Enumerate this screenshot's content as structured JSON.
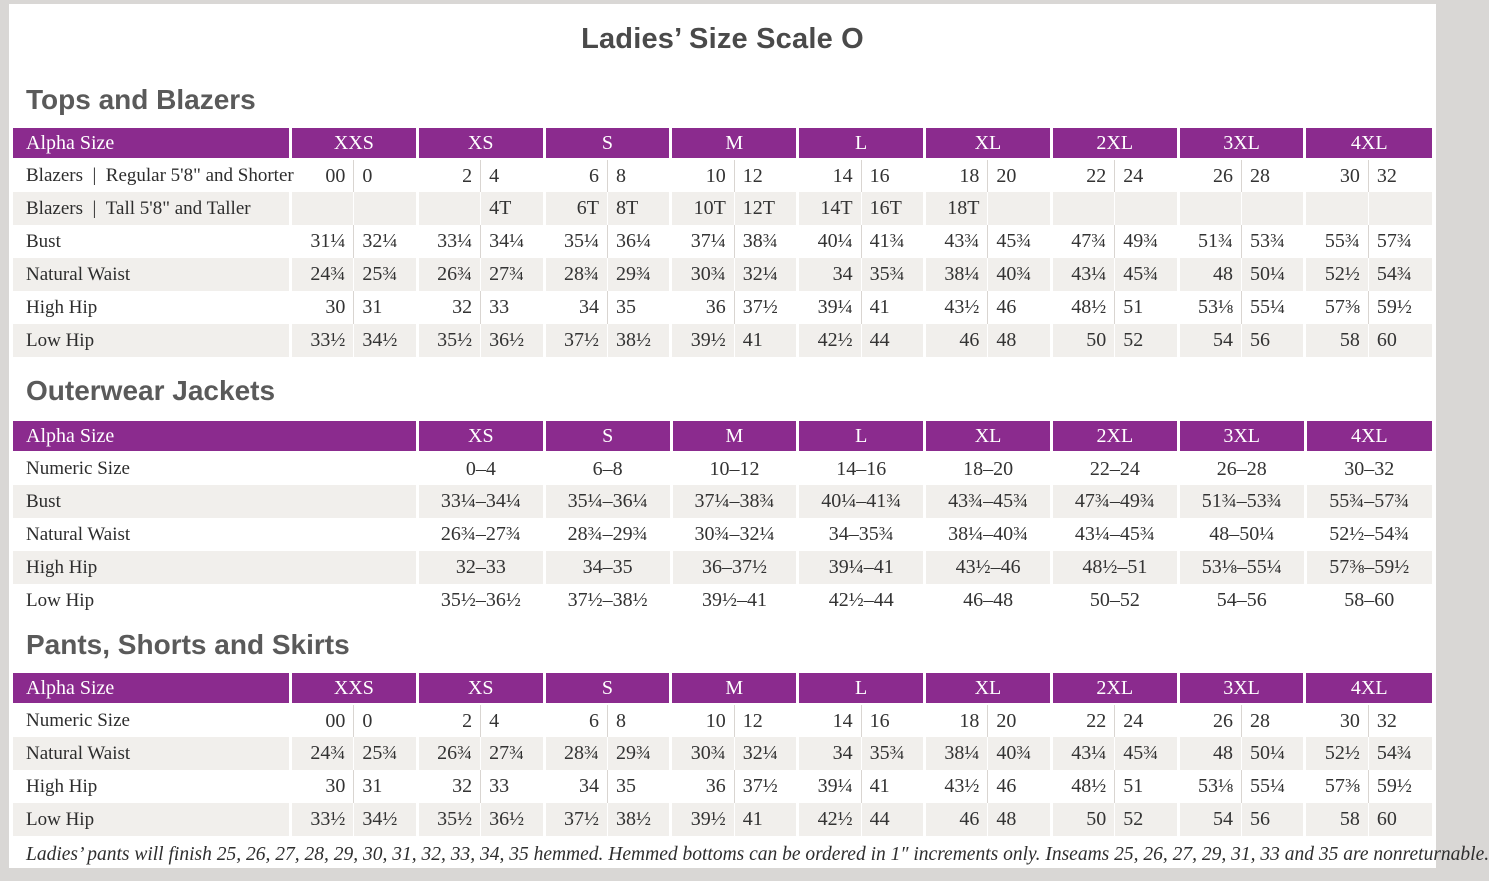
{
  "page": {
    "title": "Ladies’ Size Scale O",
    "footnote": "Ladies’ pants will finish 25, 26, 27, 28, 29, 30, 31, 32, 33, 34, 35 hemmed. Hemmed bottoms can be ordered in 1″ increments only. Inseams 25, 26, 27, 29, 31, 33 and 35 are nonreturnable.",
    "accent_color": "#8b2b8e",
    "stripe_color": "#f1efec"
  },
  "tables": [
    {
      "id": "tops-and-blazers",
      "heading": "Tops and Blazers",
      "header_label": "Alpha Size",
      "split": true,
      "sizes": [
        "XXS",
        "XS",
        "S",
        "M",
        "L",
        "XL",
        "2XL",
        "3XL",
        "4XL"
      ],
      "rows": [
        {
          "label": "Blazers | Regular 5'8\" and Shorter",
          "values": [
            [
              "00",
              "0"
            ],
            [
              "2",
              "4"
            ],
            [
              "6",
              "8"
            ],
            [
              "10",
              "12"
            ],
            [
              "14",
              "16"
            ],
            [
              "18",
              "20"
            ],
            [
              "22",
              "24"
            ],
            [
              "26",
              "28"
            ],
            [
              "30",
              "32"
            ]
          ]
        },
        {
          "label": "Blazers | Tall 5'8\" and Taller",
          "values": [
            [
              "",
              ""
            ],
            [
              "",
              "4T"
            ],
            [
              "6T",
              "8T"
            ],
            [
              "10T",
              "12T"
            ],
            [
              "14T",
              "16T"
            ],
            [
              "18T",
              ""
            ],
            [
              "",
              ""
            ],
            [
              "",
              ""
            ],
            [
              "",
              ""
            ]
          ]
        },
        {
          "label": "Bust",
          "values": [
            [
              "31¼",
              "32¼"
            ],
            [
              "33¼",
              "34¼"
            ],
            [
              "35¼",
              "36¼"
            ],
            [
              "37¼",
              "38¾"
            ],
            [
              "40¼",
              "41¾"
            ],
            [
              "43¾",
              "45¾"
            ],
            [
              "47¾",
              "49¾"
            ],
            [
              "51¾",
              "53¾"
            ],
            [
              "55¾",
              "57¾"
            ]
          ]
        },
        {
          "label": "Natural Waist",
          "values": [
            [
              "24¾",
              "25¾"
            ],
            [
              "26¾",
              "27¾"
            ],
            [
              "28¾",
              "29¾"
            ],
            [
              "30¾",
              "32¼"
            ],
            [
              "34",
              "35¾"
            ],
            [
              "38¼",
              "40¾"
            ],
            [
              "43¼",
              "45¾"
            ],
            [
              "48",
              "50¼"
            ],
            [
              "52½",
              "54¾"
            ]
          ]
        },
        {
          "label": "High Hip",
          "values": [
            [
              "30",
              "31"
            ],
            [
              "32",
              "33"
            ],
            [
              "34",
              "35"
            ],
            [
              "36",
              "37½"
            ],
            [
              "39¼",
              "41"
            ],
            [
              "43½",
              "46"
            ],
            [
              "48½",
              "51"
            ],
            [
              "53⅛",
              "55¼"
            ],
            [
              "57⅜",
              "59½"
            ]
          ]
        },
        {
          "label": "Low Hip",
          "values": [
            [
              "33½",
              "34½"
            ],
            [
              "35½",
              "36½"
            ],
            [
              "37½",
              "38½"
            ],
            [
              "39½",
              "41"
            ],
            [
              "42½",
              "44"
            ],
            [
              "46",
              "48"
            ],
            [
              "50",
              "52"
            ],
            [
              "54",
              "56"
            ],
            [
              "58",
              "60"
            ]
          ]
        }
      ]
    },
    {
      "id": "outerwear-jackets",
      "heading": "Outerwear Jackets",
      "header_label": "Alpha Size",
      "split": false,
      "sizes": [
        "XS",
        "S",
        "M",
        "L",
        "XL",
        "2XL",
        "3XL",
        "4XL"
      ],
      "rows": [
        {
          "label": "Numeric Size",
          "values": [
            "0–4",
            "6–8",
            "10–12",
            "14–16",
            "18–20",
            "22–24",
            "26–28",
            "30–32"
          ]
        },
        {
          "label": "Bust",
          "values": [
            "33¼–34¼",
            "35¼–36¼",
            "37¼–38¾",
            "40¼–41¾",
            "43¾–45¾",
            "47¾–49¾",
            "51¾–53¾",
            "55¾–57¾"
          ]
        },
        {
          "label": "Natural Waist",
          "values": [
            "26¾–27¾",
            "28¾–29¾",
            "30¾–32¼",
            "34–35¾",
            "38¼–40¾",
            "43¼–45¾",
            "48–50¼",
            "52½–54¾"
          ]
        },
        {
          "label": "High Hip",
          "values": [
            "32–33",
            "34–35",
            "36–37½",
            "39¼–41",
            "43½–46",
            "48½–51",
            "53⅛–55¼",
            "57⅜–59½"
          ]
        },
        {
          "label": "Low Hip",
          "values": [
            "35½–36½",
            "37½–38½",
            "39½–41",
            "42½–44",
            "46–48",
            "50–52",
            "54–56",
            "58–60"
          ]
        }
      ]
    },
    {
      "id": "pants-shorts-and-skirts",
      "heading": "Pants, Shorts and Skirts",
      "header_label": "Alpha Size",
      "split": true,
      "sizes": [
        "XXS",
        "XS",
        "S",
        "M",
        "L",
        "XL",
        "2XL",
        "3XL",
        "4XL"
      ],
      "rows": [
        {
          "label": "Numeric Size",
          "values": [
            [
              "00",
              "0"
            ],
            [
              "2",
              "4"
            ],
            [
              "6",
              "8"
            ],
            [
              "10",
              "12"
            ],
            [
              "14",
              "16"
            ],
            [
              "18",
              "20"
            ],
            [
              "22",
              "24"
            ],
            [
              "26",
              "28"
            ],
            [
              "30",
              "32"
            ]
          ]
        },
        {
          "label": "Natural Waist",
          "values": [
            [
              "24¾",
              "25¾"
            ],
            [
              "26¾",
              "27¾"
            ],
            [
              "28¾",
              "29¾"
            ],
            [
              "30¾",
              "32¼"
            ],
            [
              "34",
              "35¾"
            ],
            [
              "38¼",
              "40¾"
            ],
            [
              "43¼",
              "45¾"
            ],
            [
              "48",
              "50¼"
            ],
            [
              "52½",
              "54¾"
            ]
          ]
        },
        {
          "label": "High Hip",
          "values": [
            [
              "30",
              "31"
            ],
            [
              "32",
              "33"
            ],
            [
              "34",
              "35"
            ],
            [
              "36",
              "37½"
            ],
            [
              "39¼",
              "41"
            ],
            [
              "43½",
              "46"
            ],
            [
              "48½",
              "51"
            ],
            [
              "53⅛",
              "55¼"
            ],
            [
              "57⅜",
              "59½"
            ]
          ]
        },
        {
          "label": "Low Hip",
          "values": [
            [
              "33½",
              "34½"
            ],
            [
              "35½",
              "36½"
            ],
            [
              "37½",
              "38½"
            ],
            [
              "39½",
              "41"
            ],
            [
              "42½",
              "44"
            ],
            [
              "46",
              "48"
            ],
            [
              "50",
              "52"
            ],
            [
              "54",
              "56"
            ],
            [
              "58",
              "60"
            ]
          ]
        }
      ]
    }
  ]
}
